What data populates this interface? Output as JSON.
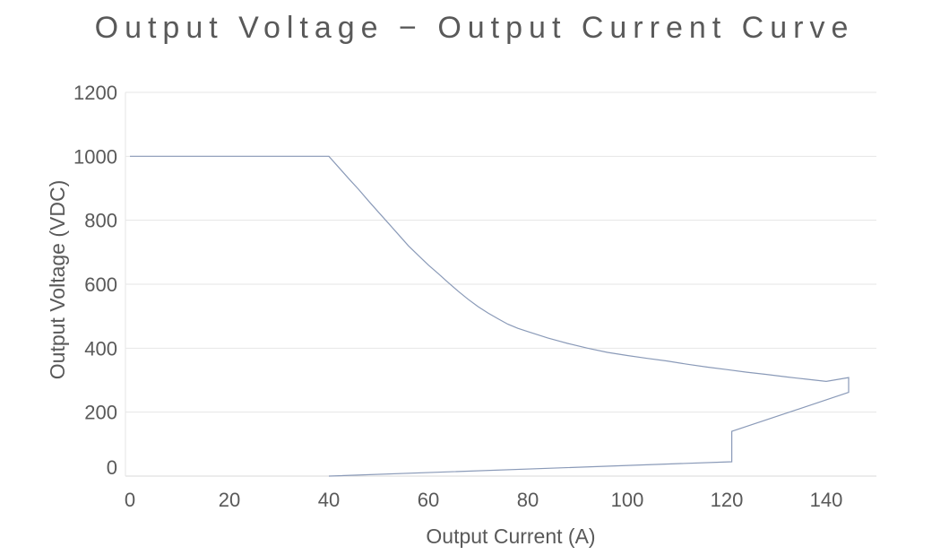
{
  "chart_data": {
    "type": "line",
    "title": "Output Voltage − Output Current Curve",
    "xlabel": "Output Current (A)",
    "ylabel": "Output Voltage (VDC)",
    "xlim": [
      0,
      150
    ],
    "ylim": [
      0,
      1200
    ],
    "xticks": [
      0,
      20,
      40,
      60,
      80,
      100,
      120,
      140
    ],
    "yticks": [
      0,
      200,
      400,
      600,
      800,
      1000,
      1200
    ],
    "grid": "horizontal",
    "line_color": "#8a9ab8",
    "series": [
      {
        "values_xy": [
          [
            0,
            1000
          ],
          [
            40,
            1000
          ],
          [
            42,
            965
          ],
          [
            44,
            930
          ],
          [
            46,
            896
          ],
          [
            48,
            860
          ],
          [
            50,
            825
          ],
          [
            52,
            790
          ],
          [
            54,
            755
          ],
          [
            56,
            720
          ],
          [
            58,
            690
          ],
          [
            60,
            660
          ],
          [
            62,
            633
          ],
          [
            64,
            605
          ],
          [
            66,
            578
          ],
          [
            68,
            553
          ],
          [
            70,
            530
          ],
          [
            72,
            510
          ],
          [
            74,
            492
          ],
          [
            76,
            475
          ],
          [
            78,
            462
          ],
          [
            80,
            452
          ],
          [
            84,
            432
          ],
          [
            88,
            415
          ],
          [
            92,
            400
          ],
          [
            96,
            387
          ],
          [
            100,
            377
          ],
          [
            104,
            368
          ],
          [
            108,
            360
          ],
          [
            112,
            350
          ],
          [
            116,
            341
          ],
          [
            120,
            333
          ],
          [
            124,
            325
          ],
          [
            128,
            318
          ],
          [
            132,
            310
          ],
          [
            136,
            303
          ],
          [
            140,
            296
          ],
          [
            144.5,
            308
          ],
          [
            144.5,
            262
          ],
          [
            121,
            140
          ],
          [
            121,
            45
          ],
          [
            40,
            0
          ]
        ]
      }
    ]
  }
}
